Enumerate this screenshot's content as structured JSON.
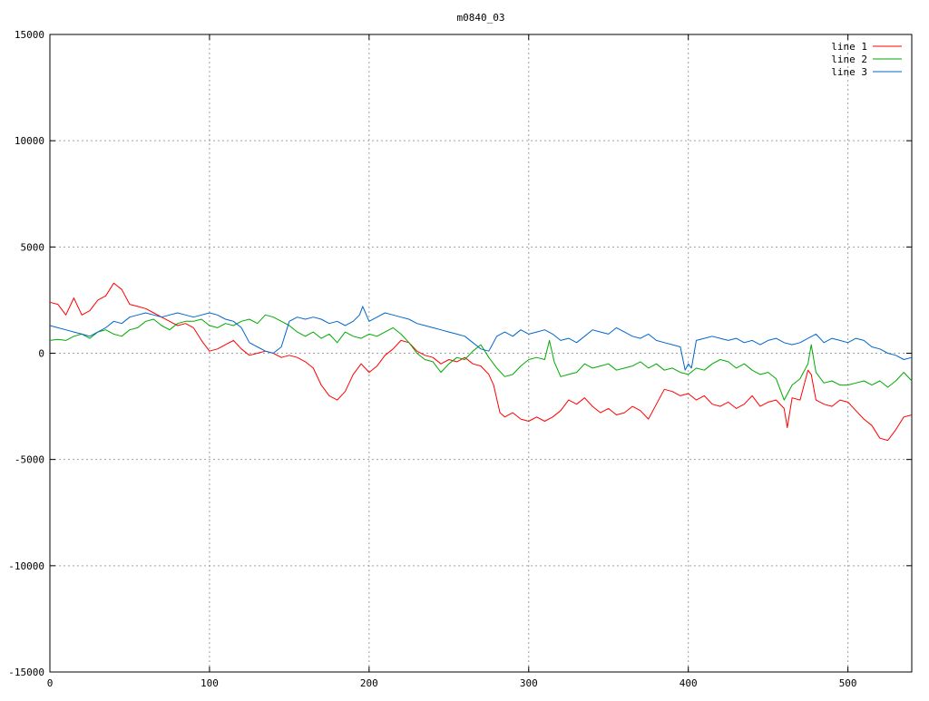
{
  "chart_data": {
    "type": "line",
    "title": "m0840_03",
    "xlabel": "",
    "ylabel": "",
    "xlim": [
      0,
      540
    ],
    "ylim": [
      -15000,
      15000
    ],
    "xticks": [
      0,
      100,
      200,
      300,
      400,
      500
    ],
    "yticks": [
      -15000,
      -10000,
      -5000,
      0,
      5000,
      10000,
      15000
    ],
    "grid": true,
    "legend_position": "top-right",
    "series": [
      {
        "name": "line 1",
        "color": "#ff0000",
        "x": [
          0,
          5,
          10,
          15,
          20,
          25,
          30,
          35,
          40,
          45,
          50,
          55,
          60,
          65,
          70,
          75,
          80,
          85,
          90,
          95,
          100,
          105,
          110,
          115,
          120,
          125,
          130,
          135,
          140,
          145,
          150,
          155,
          160,
          165,
          170,
          175,
          180,
          185,
          190,
          195,
          200,
          205,
          210,
          215,
          220,
          225,
          230,
          235,
          240,
          245,
          250,
          255,
          260,
          265,
          270,
          275,
          278,
          282,
          285,
          290,
          295,
          300,
          305,
          310,
          315,
          320,
          325,
          330,
          335,
          340,
          345,
          350,
          355,
          360,
          365,
          370,
          375,
          380,
          385,
          390,
          395,
          400,
          405,
          410,
          415,
          420,
          425,
          430,
          435,
          440,
          445,
          450,
          455,
          460,
          462,
          465,
          470,
          475,
          477,
          480,
          485,
          490,
          495,
          500,
          505,
          510,
          515,
          520,
          525,
          530,
          535,
          540
        ],
        "y": [
          2400,
          2300,
          1800,
          2600,
          1800,
          2000,
          2500,
          2700,
          3300,
          3000,
          2300,
          2200,
          2100,
          1900,
          1700,
          1500,
          1300,
          1400,
          1200,
          600,
          100,
          200,
          400,
          600,
          200,
          -100,
          0,
          100,
          0,
          -200,
          -100,
          -200,
          -400,
          -700,
          -1500,
          -2000,
          -2200,
          -1800,
          -1000,
          -500,
          -900,
          -600,
          -100,
          200,
          600,
          500,
          100,
          -100,
          -200,
          -500,
          -300,
          -400,
          -200,
          -500,
          -600,
          -1000,
          -1500,
          -2800,
          -3000,
          -2800,
          -3100,
          -3200,
          -3000,
          -3200,
          -3000,
          -2700,
          -2200,
          -2400,
          -2100,
          -2500,
          -2800,
          -2600,
          -2900,
          -2800,
          -2500,
          -2700,
          -3100,
          -2400,
          -1700,
          -1800,
          -2000,
          -1900,
          -2200,
          -2000,
          -2400,
          -2500,
          -2300,
          -2600,
          -2400,
          -2000,
          -2500,
          -2300,
          -2200,
          -2600,
          -3500,
          -2100,
          -2200,
          -800,
          -1000,
          -2200,
          -2400,
          -2500,
          -2200,
          -2300,
          -2700,
          -3100,
          -3400,
          -4000,
          -4100,
          -3600,
          -3000,
          -2900
        ]
      },
      {
        "name": "line 2",
        "color": "#00aa00",
        "x": [
          0,
          5,
          10,
          15,
          20,
          25,
          30,
          35,
          40,
          45,
          50,
          55,
          60,
          65,
          70,
          75,
          80,
          85,
          90,
          95,
          100,
          105,
          110,
          115,
          120,
          125,
          130,
          135,
          140,
          145,
          150,
          155,
          160,
          165,
          170,
          175,
          180,
          185,
          190,
          195,
          200,
          205,
          210,
          215,
          220,
          225,
          230,
          235,
          240,
          245,
          250,
          255,
          260,
          265,
          270,
          275,
          280,
          285,
          290,
          295,
          300,
          305,
          310,
          313,
          316,
          320,
          325,
          330,
          335,
          340,
          345,
          350,
          355,
          360,
          365,
          370,
          375,
          380,
          385,
          390,
          395,
          400,
          405,
          410,
          415,
          420,
          425,
          430,
          435,
          440,
          445,
          450,
          455,
          460,
          465,
          470,
          475,
          477,
          480,
          485,
          490,
          495,
          500,
          505,
          510,
          515,
          520,
          525,
          530,
          535,
          540
        ],
        "y": [
          600,
          650,
          600,
          800,
          900,
          700,
          1000,
          1100,
          900,
          800,
          1100,
          1200,
          1500,
          1600,
          1300,
          1100,
          1400,
          1500,
          1500,
          1600,
          1300,
          1200,
          1400,
          1300,
          1500,
          1600,
          1400,
          1800,
          1700,
          1500,
          1300,
          1000,
          800,
          1000,
          700,
          900,
          500,
          1000,
          800,
          700,
          900,
          800,
          1000,
          1200,
          900,
          500,
          0,
          -300,
          -400,
          -900,
          -500,
          -200,
          -300,
          100,
          400,
          -200,
          -700,
          -1100,
          -1000,
          -600,
          -300,
          -200,
          -300,
          600,
          -400,
          -1100,
          -1000,
          -900,
          -500,
          -700,
          -600,
          -500,
          -800,
          -700,
          -600,
          -400,
          -700,
          -500,
          -800,
          -700,
          -900,
          -1000,
          -700,
          -800,
          -500,
          -300,
          -400,
          -700,
          -500,
          -800,
          -1000,
          -900,
          -1200,
          -2200,
          -1500,
          -1200,
          -500,
          400,
          -900,
          -1400,
          -1300,
          -1500,
          -1500,
          -1400,
          -1300,
          -1500,
          -1300,
          -1600,
          -1300,
          -900,
          -1300
        ]
      },
      {
        "name": "line 3",
        "color": "#0066cc",
        "x": [
          0,
          5,
          10,
          15,
          20,
          25,
          30,
          35,
          40,
          45,
          50,
          55,
          60,
          65,
          70,
          75,
          80,
          85,
          90,
          95,
          100,
          105,
          110,
          115,
          120,
          125,
          130,
          135,
          140,
          145,
          150,
          155,
          160,
          165,
          170,
          175,
          180,
          185,
          190,
          194,
          196,
          200,
          205,
          210,
          215,
          220,
          225,
          230,
          235,
          240,
          245,
          250,
          255,
          260,
          265,
          270,
          275,
          280,
          285,
          290,
          295,
          300,
          305,
          310,
          315,
          320,
          325,
          330,
          335,
          340,
          345,
          350,
          355,
          360,
          365,
          370,
          375,
          380,
          385,
          390,
          395,
          398,
          400,
          402,
          405,
          410,
          415,
          420,
          425,
          430,
          435,
          440,
          445,
          450,
          455,
          460,
          465,
          470,
          475,
          480,
          485,
          490,
          495,
          500,
          505,
          510,
          515,
          520,
          525,
          530,
          535,
          540
        ],
        "y": [
          1300,
          1200,
          1100,
          1000,
          900,
          800,
          1000,
          1200,
          1500,
          1400,
          1700,
          1800,
          1900,
          1800,
          1700,
          1800,
          1900,
          1800,
          1700,
          1800,
          1900,
          1800,
          1600,
          1500,
          1200,
          500,
          300,
          100,
          0,
          300,
          1500,
          1700,
          1600,
          1700,
          1600,
          1400,
          1500,
          1300,
          1500,
          1800,
          2200,
          1500,
          1700,
          1900,
          1800,
          1700,
          1600,
          1400,
          1300,
          1200,
          1100,
          1000,
          900,
          800,
          500,
          200,
          100,
          800,
          1000,
          800,
          1100,
          900,
          1000,
          1100,
          900,
          600,
          700,
          500,
          800,
          1100,
          1000,
          900,
          1200,
          1000,
          800,
          700,
          900,
          600,
          500,
          400,
          300,
          -800,
          -500,
          -700,
          600,
          700,
          800,
          700,
          600,
          700,
          500,
          600,
          400,
          600,
          700,
          500,
          400,
          500,
          700,
          900,
          500,
          700,
          600,
          500,
          700,
          600,
          300,
          200,
          0,
          -100,
          -300,
          -200
        ]
      }
    ]
  }
}
